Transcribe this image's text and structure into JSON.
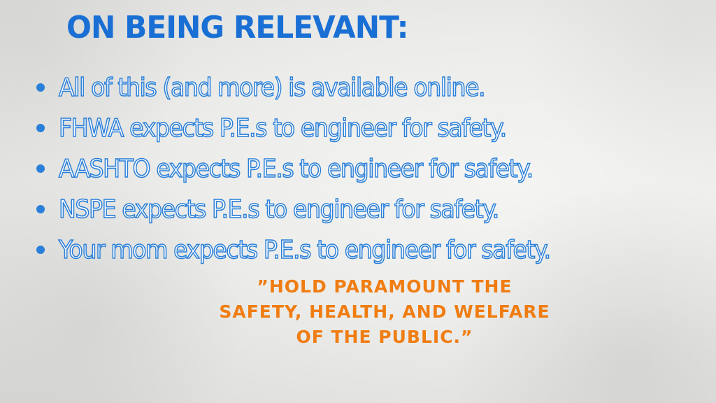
{
  "slide": {
    "title": "ON BEING RELEVANT:",
    "bullets": [
      {
        "text": "All of this (and more) is available online."
      },
      {
        "text": "FHWA expects P.E.s to engineer for safety."
      },
      {
        "text": "AASHTO expects P.E.s to engineer for safety."
      },
      {
        "text": "NSPE expects P.E.s to engineer for safety."
      },
      {
        "text": "Your mom expects P.E.s to engineer for safety."
      }
    ],
    "quote": {
      "lines": [
        "”HOLD PARAMOUNT THE",
        "SAFETY, HEALTH, AND WELFARE",
        "OF THE PUBLIC.”"
      ]
    }
  },
  "colors": {
    "title": "#1a6fd4",
    "bullet_outline": "#2a7fd9",
    "quote": "#f07d12",
    "background": "#ececea"
  }
}
